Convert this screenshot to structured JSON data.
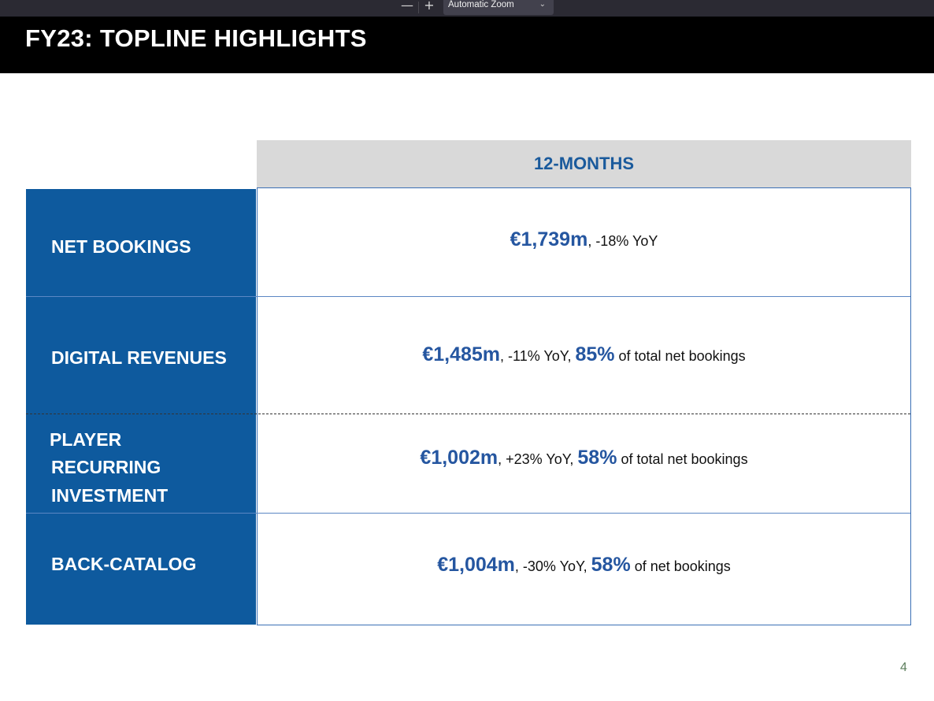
{
  "viewer": {
    "zoom_out_label": "—",
    "zoom_in_label": "+",
    "zoom_value": "Automatic Zoom",
    "zoom_chevron": "⌄"
  },
  "slide": {
    "title": "FY23: TOPLINE HIGHLIGHTS",
    "column_header": "12-MONTHS",
    "page_number": "4",
    "colors": {
      "label_bg": "#0e5a9e",
      "accent_text": "#2556a0",
      "header_bg": "#000000",
      "column_header_bg": "#d9d9d9"
    },
    "rows": [
      {
        "label": "NET BOOKINGS",
        "amount": "€1,739m",
        "yoy": ", -18% YoY",
        "share": "",
        "share_suffix": ""
      },
      {
        "label": "DIGITAL REVENUES",
        "amount": "€1,485m",
        "yoy": ", -11% YoY, ",
        "share": "85%",
        "share_suffix": " of total net bookings"
      },
      {
        "label_lines": [
          "PLAYER",
          "RECURRING",
          "INVESTMENT"
        ],
        "amount": "€1,002m",
        "yoy": ", +23% YoY, ",
        "share": "58%",
        "share_suffix": " of total net bookings"
      },
      {
        "label": "BACK-CATALOG",
        "amount": "€1,004m",
        "yoy": ", -30% YoY, ",
        "share": "58%",
        "share_suffix": " of net bookings"
      }
    ]
  }
}
